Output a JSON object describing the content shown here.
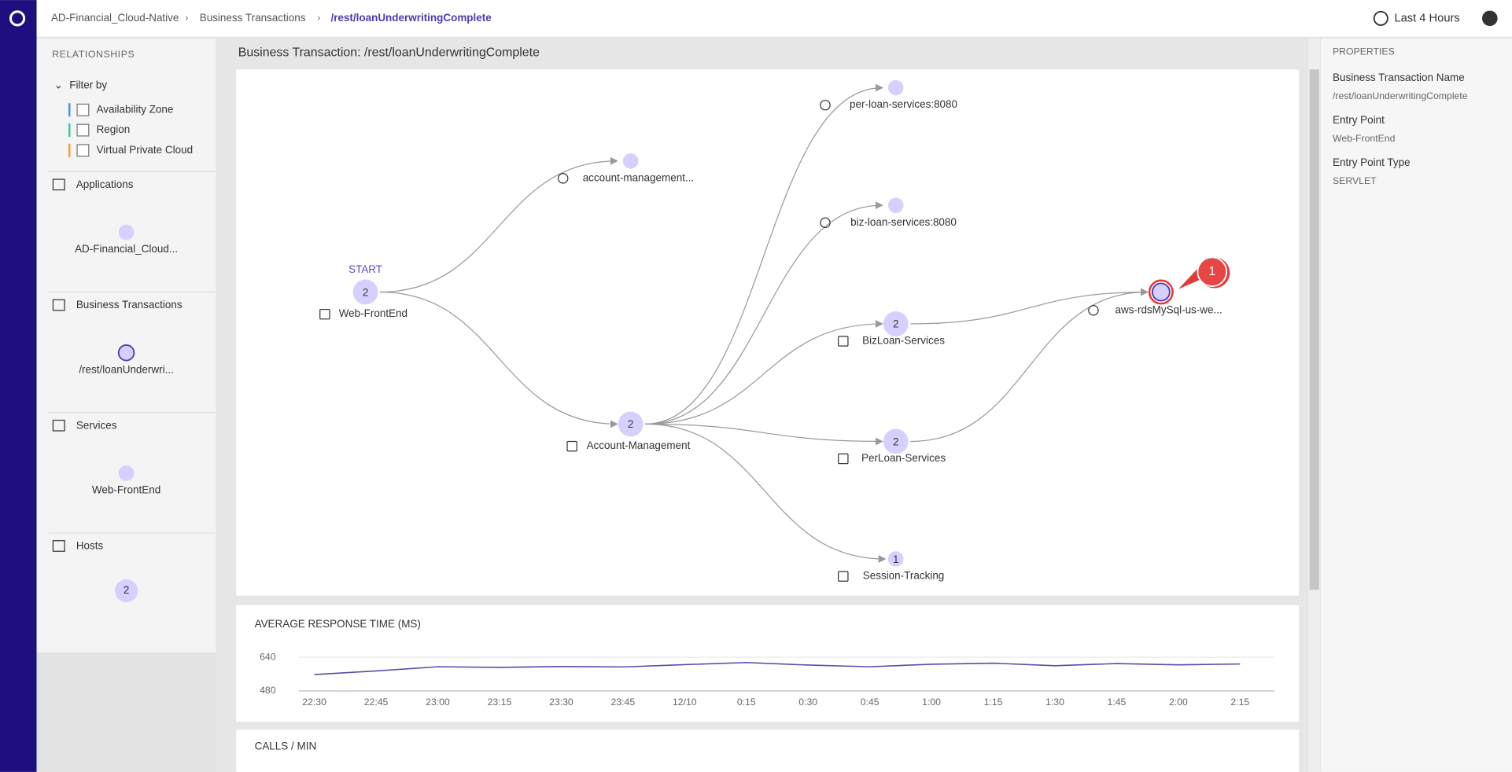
{
  "breadcrumb": [
    "AD-Financial_Cloud-Native",
    "Business Transactions",
    "/rest/loanUnderwritingComplete"
  ],
  "time_range": "Last 4 Hours",
  "sidebar": {
    "title": "RELATIONSHIPS",
    "filter_label": "Filter by",
    "filters": [
      "Availability Zone",
      "Region",
      "Virtual Private Cloud"
    ],
    "sections": [
      {
        "title": "Applications",
        "node_label": "AD-Financial_Cloud..."
      },
      {
        "title": "Business Transactions",
        "node_label": "/rest/loanUnderwri..."
      },
      {
        "title": "Services",
        "node_label": "Web-FrontEnd"
      },
      {
        "title": "Hosts",
        "count": 2
      }
    ]
  },
  "graph": {
    "title": "Business Transaction: /rest/loanUnderwritingComplete",
    "start_label": "START",
    "nodes": [
      {
        "label": "Web-FrontEnd",
        "count": 2
      },
      {
        "label": "account-management..."
      },
      {
        "label": "Account-Management",
        "count": 2
      },
      {
        "label": "per-loan-services:8080"
      },
      {
        "label": "biz-loan-services:8080"
      },
      {
        "label": "BizLoan-Services",
        "count": 2
      },
      {
        "label": "PerLoan-Services",
        "count": 2
      },
      {
        "label": "Session-Tracking",
        "count": 1
      },
      {
        "label": "aws-rdsMySql-us-we..."
      }
    ],
    "annotation": "1"
  },
  "response_chart": {
    "type": "line",
    "title": "AVERAGE RESPONSE TIME (MS)",
    "categories": [
      "22:30",
      "22:45",
      "23:00",
      "23:15",
      "23:30",
      "23:45",
      "12/10",
      "0:15",
      "0:30",
      "0:45",
      "1:00",
      "1:15",
      "1:30",
      "1:45",
      "2:00",
      "2:15"
    ],
    "values": [
      558,
      575,
      595,
      592,
      596,
      594,
      605,
      615,
      603,
      595,
      607,
      612,
      600,
      610,
      604,
      608
    ],
    "color": "#5b4aa8",
    "ylim": [
      480,
      640
    ],
    "yticks": [
      480,
      640
    ]
  },
  "calls_title": "CALLS / MIN",
  "properties": {
    "title": "PROPERTIES",
    "items": [
      {
        "name": "Business Transaction Name",
        "value": "/rest/loanUnderwritingComplete"
      },
      {
        "name": "Entry Point",
        "value": "Web-FrontEnd"
      },
      {
        "name": "Entry Point Type",
        "value": "SERVLET"
      }
    ]
  }
}
